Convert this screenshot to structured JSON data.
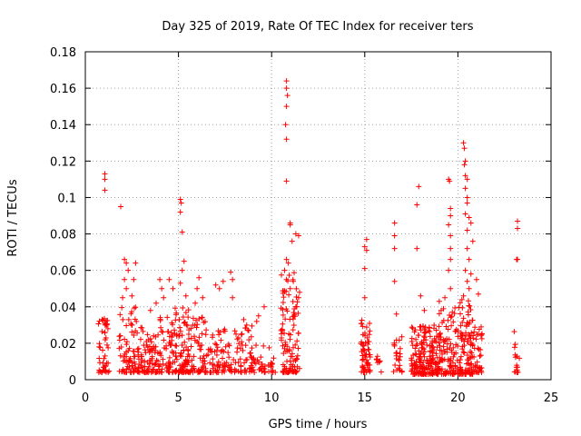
{
  "chart_data": {
    "type": "scatter",
    "title": "Day 325 of 2019, Rate Of TEC Index for receiver ters",
    "xlabel": "GPS time / hours",
    "ylabel": "ROTI / TECUs",
    "xlim": [
      0,
      25
    ],
    "ylim": [
      0,
      0.18
    ],
    "x_ticks": [
      0,
      5,
      10,
      15,
      20,
      25
    ],
    "x_tick_labels": [
      "0",
      "5",
      "10",
      "15",
      "20",
      "25"
    ],
    "y_ticks": [
      0,
      0.02,
      0.04,
      0.06,
      0.08,
      0.1,
      0.12,
      0.14,
      0.16,
      0.18
    ],
    "y_tick_labels": [
      "0",
      "0.02",
      "0.04",
      "0.06",
      "0.08",
      "0.1",
      "0.12",
      "0.14",
      "0.16",
      "0.18"
    ],
    "grid": true,
    "marker": "+",
    "color": "#ff0000",
    "clusters": [
      {
        "x": [
          0.7,
          1.3
        ],
        "y": [
          0.004,
          0.035
        ],
        "n": 40
      },
      {
        "x": [
          1.0,
          1.2
        ],
        "y": [
          0.03,
          0.035
        ],
        "n": 6
      },
      {
        "x": [
          1.8,
          2.8
        ],
        "y": [
          0.004,
          0.04
        ],
        "n": 70
      },
      {
        "x": [
          2.8,
          3.8
        ],
        "y": [
          0.004,
          0.03
        ],
        "n": 80
      },
      {
        "x": [
          3.8,
          4.8
        ],
        "y": [
          0.004,
          0.035
        ],
        "n": 70
      },
      {
        "x": [
          4.8,
          5.6
        ],
        "y": [
          0.004,
          0.04
        ],
        "n": 90
      },
      {
        "x": [
          5.6,
          6.5
        ],
        "y": [
          0.004,
          0.035
        ],
        "n": 60
      },
      {
        "x": [
          6.5,
          7.8
        ],
        "y": [
          0.004,
          0.03
        ],
        "n": 70
      },
      {
        "x": [
          7.8,
          9.0
        ],
        "y": [
          0.004,
          0.03
        ],
        "n": 60
      },
      {
        "x": [
          9.0,
          10.2
        ],
        "y": [
          0.004,
          0.02
        ],
        "n": 40
      },
      {
        "x": [
          10.5,
          11.5
        ],
        "y": [
          0.004,
          0.06
        ],
        "n": 110
      },
      {
        "x": [
          14.8,
          15.3
        ],
        "y": [
          0.004,
          0.035
        ],
        "n": 60
      },
      {
        "x": [
          15.6,
          15.9
        ],
        "y": [
          0.004,
          0.015
        ],
        "n": 8
      },
      {
        "x": [
          16.5,
          17.0
        ],
        "y": [
          0.004,
          0.025
        ],
        "n": 25
      },
      {
        "x": [
          17.5,
          19.0
        ],
        "y": [
          0.003,
          0.03
        ],
        "n": 200
      },
      {
        "x": [
          19.0,
          19.8
        ],
        "y": [
          0.003,
          0.04
        ],
        "n": 80
      },
      {
        "x": [
          19.8,
          20.8
        ],
        "y": [
          0.003,
          0.045
        ],
        "n": 120
      },
      {
        "x": [
          20.8,
          21.3
        ],
        "y": [
          0.004,
          0.03
        ],
        "n": 40
      },
      {
        "x": [
          23.0,
          23.3
        ],
        "y": [
          0.004,
          0.028
        ],
        "n": 16
      }
    ],
    "points": [
      [
        1.05,
        0.113
      ],
      [
        1.05,
        0.11
      ],
      [
        1.05,
        0.104
      ],
      [
        1.05,
        0.031
      ],
      [
        1.05,
        0.026
      ],
      [
        1.9,
        0.095
      ],
      [
        2.1,
        0.066
      ],
      [
        2.2,
        0.064
      ],
      [
        2.3,
        0.06
      ],
      [
        2.1,
        0.055
      ],
      [
        2.2,
        0.05
      ],
      [
        2.0,
        0.045
      ],
      [
        2.7,
        0.064
      ],
      [
        2.6,
        0.055
      ],
      [
        2.5,
        0.046
      ],
      [
        3.5,
        0.038
      ],
      [
        3.8,
        0.042
      ],
      [
        4.0,
        0.055
      ],
      [
        4.1,
        0.05
      ],
      [
        4.2,
        0.045
      ],
      [
        4.5,
        0.055
      ],
      [
        4.7,
        0.05
      ],
      [
        5.1,
        0.099
      ],
      [
        5.15,
        0.097
      ],
      [
        5.1,
        0.092
      ],
      [
        5.2,
        0.081
      ],
      [
        5.3,
        0.065
      ],
      [
        5.2,
        0.06
      ],
      [
        5.1,
        0.053
      ],
      [
        5.4,
        0.046
      ],
      [
        6.1,
        0.056
      ],
      [
        6.0,
        0.05
      ],
      [
        6.3,
        0.045
      ],
      [
        5.9,
        0.042
      ],
      [
        7.0,
        0.052
      ],
      [
        7.2,
        0.05
      ],
      [
        7.4,
        0.054
      ],
      [
        7.8,
        0.059
      ],
      [
        7.9,
        0.055
      ],
      [
        7.9,
        0.045
      ],
      [
        8.5,
        0.033
      ],
      [
        9.3,
        0.035
      ],
      [
        9.2,
        0.032
      ],
      [
        9.6,
        0.04
      ],
      [
        10.8,
        0.164
      ],
      [
        10.8,
        0.16
      ],
      [
        10.85,
        0.156
      ],
      [
        10.8,
        0.15
      ],
      [
        10.75,
        0.14
      ],
      [
        10.8,
        0.132
      ],
      [
        10.8,
        0.109
      ],
      [
        11.0,
        0.086
      ],
      [
        11.0,
        0.085
      ],
      [
        11.3,
        0.08
      ],
      [
        11.1,
        0.076
      ],
      [
        11.45,
        0.079
      ],
      [
        10.8,
        0.066
      ],
      [
        10.9,
        0.064
      ],
      [
        10.7,
        0.06
      ],
      [
        10.8,
        0.055
      ],
      [
        11.0,
        0.05
      ],
      [
        11.5,
        0.048
      ],
      [
        11.45,
        0.045
      ],
      [
        11.3,
        0.04
      ],
      [
        15.1,
        0.077
      ],
      [
        15.0,
        0.073
      ],
      [
        15.1,
        0.071
      ],
      [
        15.0,
        0.061
      ],
      [
        15.0,
        0.045
      ],
      [
        16.6,
        0.086
      ],
      [
        16.6,
        0.079
      ],
      [
        16.6,
        0.072
      ],
      [
        16.6,
        0.054
      ],
      [
        16.7,
        0.036
      ],
      [
        17.8,
        0.096
      ],
      [
        17.9,
        0.106
      ],
      [
        17.8,
        0.072
      ],
      [
        18.0,
        0.046
      ],
      [
        18.2,
        0.038
      ],
      [
        19.0,
        0.043
      ],
      [
        19.1,
        0.038
      ],
      [
        19.3,
        0.045
      ],
      [
        19.6,
        0.05
      ],
      [
        19.5,
        0.11
      ],
      [
        19.55,
        0.109
      ],
      [
        19.6,
        0.094
      ],
      [
        19.6,
        0.09
      ],
      [
        19.5,
        0.085
      ],
      [
        19.6,
        0.079
      ],
      [
        19.6,
        0.072
      ],
      [
        19.6,
        0.066
      ],
      [
        19.5,
        0.06
      ],
      [
        20.3,
        0.13
      ],
      [
        20.35,
        0.127
      ],
      [
        20.4,
        0.12
      ],
      [
        20.35,
        0.118
      ],
      [
        20.4,
        0.112
      ],
      [
        20.5,
        0.11
      ],
      [
        20.4,
        0.105
      ],
      [
        20.5,
        0.1
      ],
      [
        20.5,
        0.097
      ],
      [
        20.4,
        0.091
      ],
      [
        20.6,
        0.089
      ],
      [
        20.7,
        0.086
      ],
      [
        20.5,
        0.082
      ],
      [
        20.8,
        0.076
      ],
      [
        20.5,
        0.072
      ],
      [
        20.6,
        0.066
      ],
      [
        20.4,
        0.06
      ],
      [
        20.7,
        0.058
      ],
      [
        20.5,
        0.054
      ],
      [
        20.6,
        0.05
      ],
      [
        20.3,
        0.046
      ],
      [
        21.0,
        0.055
      ],
      [
        21.1,
        0.047
      ],
      [
        23.2,
        0.087
      ],
      [
        23.2,
        0.083
      ],
      [
        23.15,
        0.066
      ],
      [
        23.2,
        0.066
      ]
    ]
  }
}
